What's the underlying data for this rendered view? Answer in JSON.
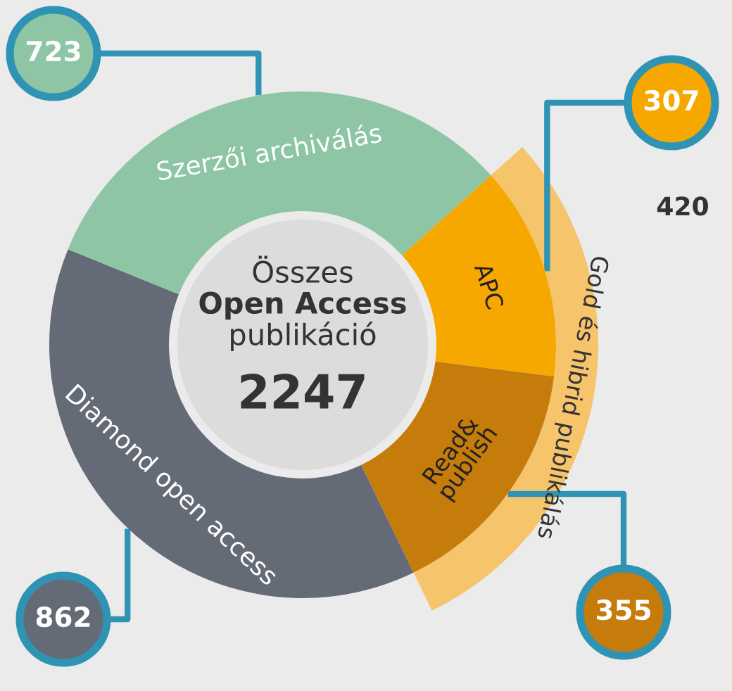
{
  "chart_data": {
    "type": "donut",
    "title": "Összes\nOpen Access\npublikáció",
    "subtitle": "2247",
    "categories": [
      "APC",
      "Read&\npublish",
      "Diamond open access",
      "Szerzői archiválás"
    ],
    "values": [
      307,
      355,
      862,
      723
    ],
    "colors": [
      "#f6a800",
      "#c67c0b",
      "#646b77",
      "#8dc5a5"
    ],
    "value_labels": [
      "307",
      "355",
      "862",
      "723"
    ],
    "annotations": [
      "Gold és hibrid publikálás",
      "420"
    ]
  }
}
